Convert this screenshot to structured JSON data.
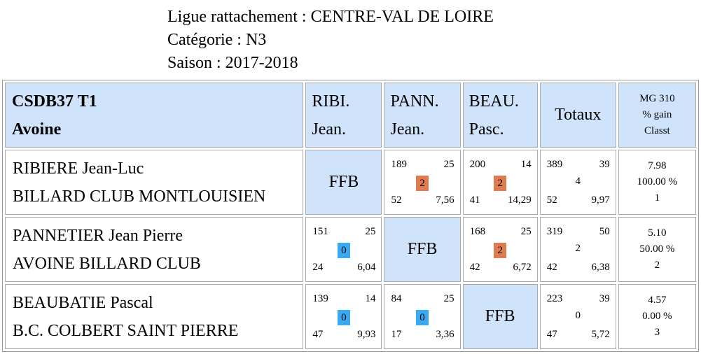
{
  "header": {
    "ligue": "Ligue rattachement : CENTRE-VAL DE LOIRE",
    "categorie": "Catégorie : N3",
    "saison": "Saison : 2017-2018"
  },
  "table": {
    "team_line1": "CSDB37 T1",
    "team_line2": "Avoine",
    "columns": [
      {
        "line1": "RIBI.",
        "line2": "Jean."
      },
      {
        "line1": "PANN.",
        "line2": "Jean."
      },
      {
        "line1": "BEAU.",
        "line2": "Pasc."
      }
    ],
    "totals_label": "Totaux",
    "mg_line1": "MG 310",
    "mg_line2": "% gain",
    "mg_line3": "Classt",
    "self_label": "FFB",
    "colors": {
      "header_bg": "#cfe3fb",
      "win_badge": "#e07a50",
      "loss_badge": "#3aa9f0"
    }
  },
  "players": [
    {
      "name": "RIBIERE Jean-Luc",
      "club": "BILLARD CLUB MONTLOUISIEN",
      "matches": [
        null,
        {
          "points": "189",
          "reprises": "25",
          "badge": "2",
          "serie": "52",
          "moyenne": "7,56",
          "result": "win"
        },
        {
          "points": "200",
          "reprises": "14",
          "badge": "2",
          "serie": "41",
          "moyenne": "14,29",
          "result": "win"
        }
      ],
      "totals": {
        "points": "389",
        "reprises": "39",
        "score": "4",
        "serie": "52",
        "moyenne": "9,97"
      },
      "mg": "7.98",
      "pct": "100.00 %",
      "rank": "1"
    },
    {
      "name": "PANNETIER Jean Pierre",
      "club": "AVOINE BILLARD CLUB",
      "matches": [
        {
          "points": "151",
          "reprises": "25",
          "badge": "0",
          "serie": "24",
          "moyenne": "6,04",
          "result": "loss"
        },
        null,
        {
          "points": "168",
          "reprises": "25",
          "badge": "2",
          "serie": "42",
          "moyenne": "6,72",
          "result": "win"
        }
      ],
      "totals": {
        "points": "319",
        "reprises": "50",
        "score": "2",
        "serie": "42",
        "moyenne": "6,38"
      },
      "mg": "5.10",
      "pct": "50.00 %",
      "rank": "2"
    },
    {
      "name": "BEAUBATIE Pascal",
      "club": "B.C. COLBERT SAINT PIERRE",
      "matches": [
        {
          "points": "139",
          "reprises": "14",
          "badge": "0",
          "serie": "47",
          "moyenne": "9,93",
          "result": "loss"
        },
        {
          "points": "84",
          "reprises": "25",
          "badge": "0",
          "serie": "17",
          "moyenne": "3,36",
          "result": "loss"
        },
        null
      ],
      "totals": {
        "points": "223",
        "reprises": "39",
        "score": "0",
        "serie": "47",
        "moyenne": "5,72"
      },
      "mg": "4.57",
      "pct": "0.00 %",
      "rank": "3"
    }
  ]
}
